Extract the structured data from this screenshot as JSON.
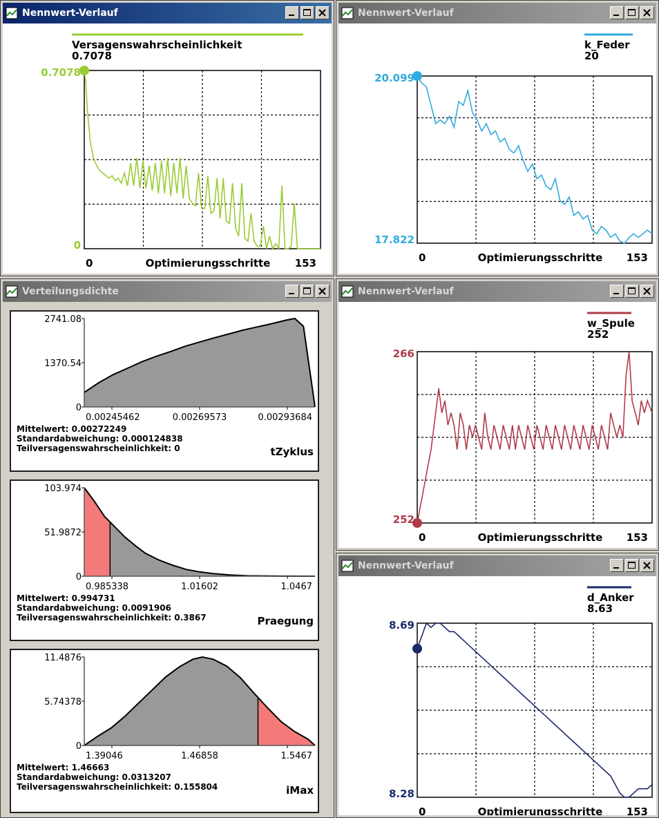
{
  "windows": {
    "w1": {
      "title": "Nennwert-Verlauf"
    },
    "w2": {
      "title": "Nennwert-Verlauf"
    },
    "w3": {
      "title": "Verteilungsdichte"
    },
    "w4": {
      "title": "Nennwert-Verlauf"
    },
    "w5": {
      "title": "Nennwert-Verlauf"
    }
  },
  "chart_data": [
    {
      "id": "versagen",
      "type": "line",
      "color": "#99cc33",
      "legend": "Versagenswahrscheinlichkeit",
      "legend_value": "0.7078",
      "ytick_top": "0.7078",
      "ytick_bottom": "0",
      "ylim": [
        0,
        0.7078
      ],
      "xlabel": "Optimierungsschritte",
      "xtick_left": "0",
      "xtick_right": "153",
      "xlim": [
        0,
        153
      ],
      "x": [
        0,
        1,
        2,
        4,
        6,
        8,
        10,
        12,
        14,
        16,
        18,
        20,
        22,
        24,
        26,
        28,
        30,
        32,
        34,
        36,
        38,
        40,
        42,
        44,
        46,
        48,
        50,
        52,
        54,
        56,
        58,
        60,
        62,
        64,
        66,
        68,
        70,
        72,
        74,
        76,
        78,
        80,
        82,
        84,
        86,
        88,
        90,
        92,
        94,
        96,
        98,
        100,
        102,
        104,
        106,
        108,
        110,
        112,
        114,
        116,
        118,
        120,
        122,
        124,
        126,
        128,
        130,
        132,
        134,
        136,
        138,
        140,
        142,
        144,
        146,
        148,
        150,
        153
      ],
      "y": [
        0.7078,
        0.66,
        0.55,
        0.42,
        0.36,
        0.33,
        0.31,
        0.3,
        0.29,
        0.28,
        0.29,
        0.27,
        0.28,
        0.26,
        0.3,
        0.25,
        0.34,
        0.25,
        0.36,
        0.24,
        0.35,
        0.24,
        0.33,
        0.23,
        0.34,
        0.22,
        0.35,
        0.22,
        0.36,
        0.21,
        0.34,
        0.22,
        0.36,
        0.2,
        0.33,
        0.2,
        0.18,
        0.17,
        0.3,
        0.16,
        0.16,
        0.29,
        0.14,
        0.15,
        0.28,
        0.12,
        0.28,
        0.11,
        0.1,
        0.26,
        0.08,
        0.05,
        0.26,
        0.04,
        0.03,
        0.14,
        0.03,
        0.01,
        0.01,
        0.09,
        0.0,
        0.05,
        0.0,
        0.02,
        0.0,
        0.25,
        0.0,
        0.0,
        0.01,
        0.18,
        0.0,
        0.0,
        0.0,
        0.0,
        0.0,
        0.0,
        0.0,
        0.0
      ]
    },
    {
      "id": "kfeder",
      "type": "line",
      "color": "#33aadd",
      "legend": "k_Feder",
      "legend_value": "20",
      "ytick_top": "20.099",
      "ytick_bottom": "17.822",
      "ylim": [
        17.822,
        20.099
      ],
      "xlabel": "Optimierungsschritte",
      "xtick_left": "0",
      "xtick_right": "153",
      "xlim": [
        0,
        153
      ],
      "x": [
        0,
        3,
        6,
        9,
        12,
        15,
        18,
        21,
        24,
        27,
        30,
        33,
        36,
        39,
        42,
        45,
        48,
        51,
        54,
        57,
        60,
        63,
        66,
        69,
        72,
        75,
        78,
        81,
        84,
        87,
        90,
        93,
        96,
        99,
        102,
        105,
        108,
        111,
        114,
        117,
        120,
        123,
        126,
        129,
        132,
        135,
        138,
        141,
        144,
        147,
        150,
        153
      ],
      "y": [
        20.099,
        20.0,
        19.95,
        19.7,
        19.45,
        19.5,
        19.45,
        19.55,
        19.4,
        19.75,
        19.7,
        19.9,
        19.6,
        19.5,
        19.35,
        19.45,
        19.3,
        19.35,
        19.2,
        19.25,
        19.1,
        19.05,
        19.15,
        18.95,
        18.8,
        18.9,
        18.7,
        18.75,
        18.6,
        18.55,
        18.7,
        18.4,
        18.35,
        18.45,
        18.2,
        18.25,
        18.15,
        18.2,
        18.0,
        17.95,
        18.05,
        18.0,
        17.9,
        17.95,
        17.85,
        17.8,
        17.9,
        17.95,
        17.9,
        17.95,
        18.0,
        17.95
      ]
    },
    {
      "id": "wspule",
      "type": "line",
      "color": "#b03a4a",
      "legend": "w_Spule",
      "legend_value": "252",
      "ytick_top": "266",
      "ytick_bottom": "252",
      "ylim": [
        252,
        266
      ],
      "xlabel": "Optimierungsschritte",
      "xtick_left": "0",
      "xtick_right": "153",
      "xlim": [
        0,
        153
      ],
      "x": [
        0,
        3,
        6,
        9,
        12,
        14,
        16,
        18,
        20,
        22,
        24,
        26,
        28,
        30,
        32,
        34,
        36,
        38,
        40,
        42,
        44,
        46,
        48,
        50,
        52,
        54,
        56,
        58,
        60,
        62,
        64,
        66,
        68,
        70,
        72,
        74,
        76,
        78,
        80,
        82,
        84,
        86,
        88,
        90,
        92,
        94,
        96,
        98,
        100,
        102,
        104,
        106,
        108,
        110,
        112,
        114,
        116,
        118,
        120,
        122,
        124,
        126,
        128,
        130,
        132,
        134,
        136,
        138,
        140,
        142,
        144,
        146,
        148,
        150,
        153
      ],
      "y": [
        252,
        254,
        256,
        258,
        261,
        263,
        261,
        262,
        260,
        261,
        260,
        258,
        261,
        260,
        258,
        260,
        259,
        260,
        259,
        258,
        261,
        259,
        258,
        260,
        259,
        258,
        260,
        259,
        258,
        260,
        258,
        260,
        259,
        258,
        260,
        259,
        258,
        260,
        259,
        258,
        260,
        259,
        258,
        260,
        259,
        258,
        260,
        259,
        258,
        260,
        259,
        258,
        260,
        259,
        258,
        260,
        259,
        258,
        260,
        259,
        258,
        261,
        260,
        259,
        260,
        259,
        264,
        266,
        262,
        261,
        260,
        262,
        261,
        262,
        261
      ]
    },
    {
      "id": "danker",
      "type": "line",
      "color": "#1a2a6a",
      "legend": "d_Anker",
      "legend_value": "8.63",
      "ytick_top": "8.69",
      "ytick_bottom": "8.28",
      "ylim": [
        8.28,
        8.69
      ],
      "xlabel": "Optimierungsschritte",
      "xtick_left": "0",
      "xtick_right": "153",
      "xlim": [
        0,
        153
      ],
      "x": [
        0,
        3,
        6,
        9,
        12,
        15,
        18,
        21,
        24,
        27,
        30,
        33,
        36,
        39,
        42,
        45,
        48,
        51,
        54,
        57,
        60,
        63,
        66,
        69,
        72,
        75,
        78,
        81,
        84,
        87,
        90,
        93,
        96,
        99,
        102,
        105,
        108,
        111,
        114,
        117,
        120,
        123,
        126,
        129,
        132,
        135,
        138,
        141,
        144,
        147,
        150,
        153
      ],
      "y": [
        8.63,
        8.66,
        8.69,
        8.68,
        8.7,
        8.69,
        8.68,
        8.67,
        8.67,
        8.66,
        8.65,
        8.64,
        8.63,
        8.62,
        8.61,
        8.6,
        8.59,
        8.58,
        8.57,
        8.56,
        8.55,
        8.54,
        8.53,
        8.52,
        8.51,
        8.5,
        8.49,
        8.48,
        8.47,
        8.46,
        8.45,
        8.44,
        8.43,
        8.42,
        8.41,
        8.4,
        8.39,
        8.38,
        8.37,
        8.36,
        8.35,
        8.34,
        8.33,
        8.31,
        8.29,
        8.27,
        8.28,
        8.29,
        8.3,
        8.3,
        8.3,
        8.31
      ]
    },
    {
      "id": "tzyklus",
      "type": "area",
      "name": "tZyklus",
      "ytick_top": "2741.08",
      "ytick_mid": "1370.54",
      "ytick_bottom": "0",
      "ylim": [
        0,
        2741.08
      ],
      "xticks": [
        "0.00245462",
        "0.00269573",
        "0.00293684"
      ],
      "xlim": [
        0.0023,
        0.0031
      ],
      "mittelwert": "Mittelwert: 0.00272249",
      "std": "Standardabweichung: 0.000124838",
      "teil": "Teilversagenswahrscheinlichkeit: 0",
      "x": [
        0.0023,
        0.00235,
        0.0024,
        0.00245,
        0.0025,
        0.00255,
        0.0026,
        0.00265,
        0.0027,
        0.00275,
        0.0028,
        0.00285,
        0.0029,
        0.00295,
        0.003,
        0.00303,
        0.00306,
        0.0031
      ],
      "y": [
        450,
        750,
        1000,
        1200,
        1400,
        1570,
        1720,
        1880,
        2010,
        2140,
        2260,
        2380,
        2480,
        2580,
        2690,
        2741,
        2500,
        0
      ],
      "failure_fraction": 0
    },
    {
      "id": "praegung",
      "type": "area",
      "name": "Praegung",
      "ytick_top": "103.974",
      "ytick_mid": "51.9872",
      "ytick_bottom": "0",
      "ylim": [
        0,
        103.974
      ],
      "xticks": [
        "0.985338",
        "1.01602",
        "1.0467"
      ],
      "xlim": [
        0.982,
        1.05
      ],
      "mittelwert": "Mittelwert: 0.994731",
      "std": "Standardabweichung: 0.0091906",
      "teil": "Teilversagenswahrscheinlichkeit: 0.3867",
      "x": [
        0.982,
        0.985,
        0.988,
        0.991,
        0.994,
        0.997,
        1.0,
        1.004,
        1.008,
        1.012,
        1.016,
        1.02,
        1.025,
        1.03,
        1.04,
        1.05
      ],
      "y": [
        103.974,
        88,
        70,
        58,
        46,
        36,
        27,
        19,
        13,
        8,
        5,
        3,
        1.5,
        0.5,
        0.1,
        0
      ],
      "fail_split": 0.9896
    },
    {
      "id": "imax",
      "type": "area",
      "name": "iMax",
      "ytick_top": "11.4876",
      "ytick_mid": "5.74378",
      "ytick_bottom": "0",
      "ylim": [
        0,
        11.4876
      ],
      "xticks": [
        "1.39046",
        "1.46858",
        "1.5467"
      ],
      "xlim": [
        1.38,
        1.55
      ],
      "mittelwert": "Mittelwert: 1.46663",
      "std": "Standardabweichung: 0.0313207",
      "teil": "Teilversagenswahrscheinlichkeit: 0.155804",
      "x": [
        1.38,
        1.39,
        1.4,
        1.41,
        1.42,
        1.43,
        1.44,
        1.45,
        1.46,
        1.467,
        1.475,
        1.485,
        1.495,
        1.505,
        1.515,
        1.525,
        1.535,
        1.545,
        1.55
      ],
      "y": [
        0,
        1.2,
        2.3,
        3.8,
        5.5,
        7.2,
        8.9,
        10.2,
        11.2,
        11.4876,
        11.2,
        10.3,
        8.8,
        6.8,
        4.9,
        3.1,
        1.8,
        0.8,
        0
      ],
      "fail_split": 1.508
    }
  ]
}
